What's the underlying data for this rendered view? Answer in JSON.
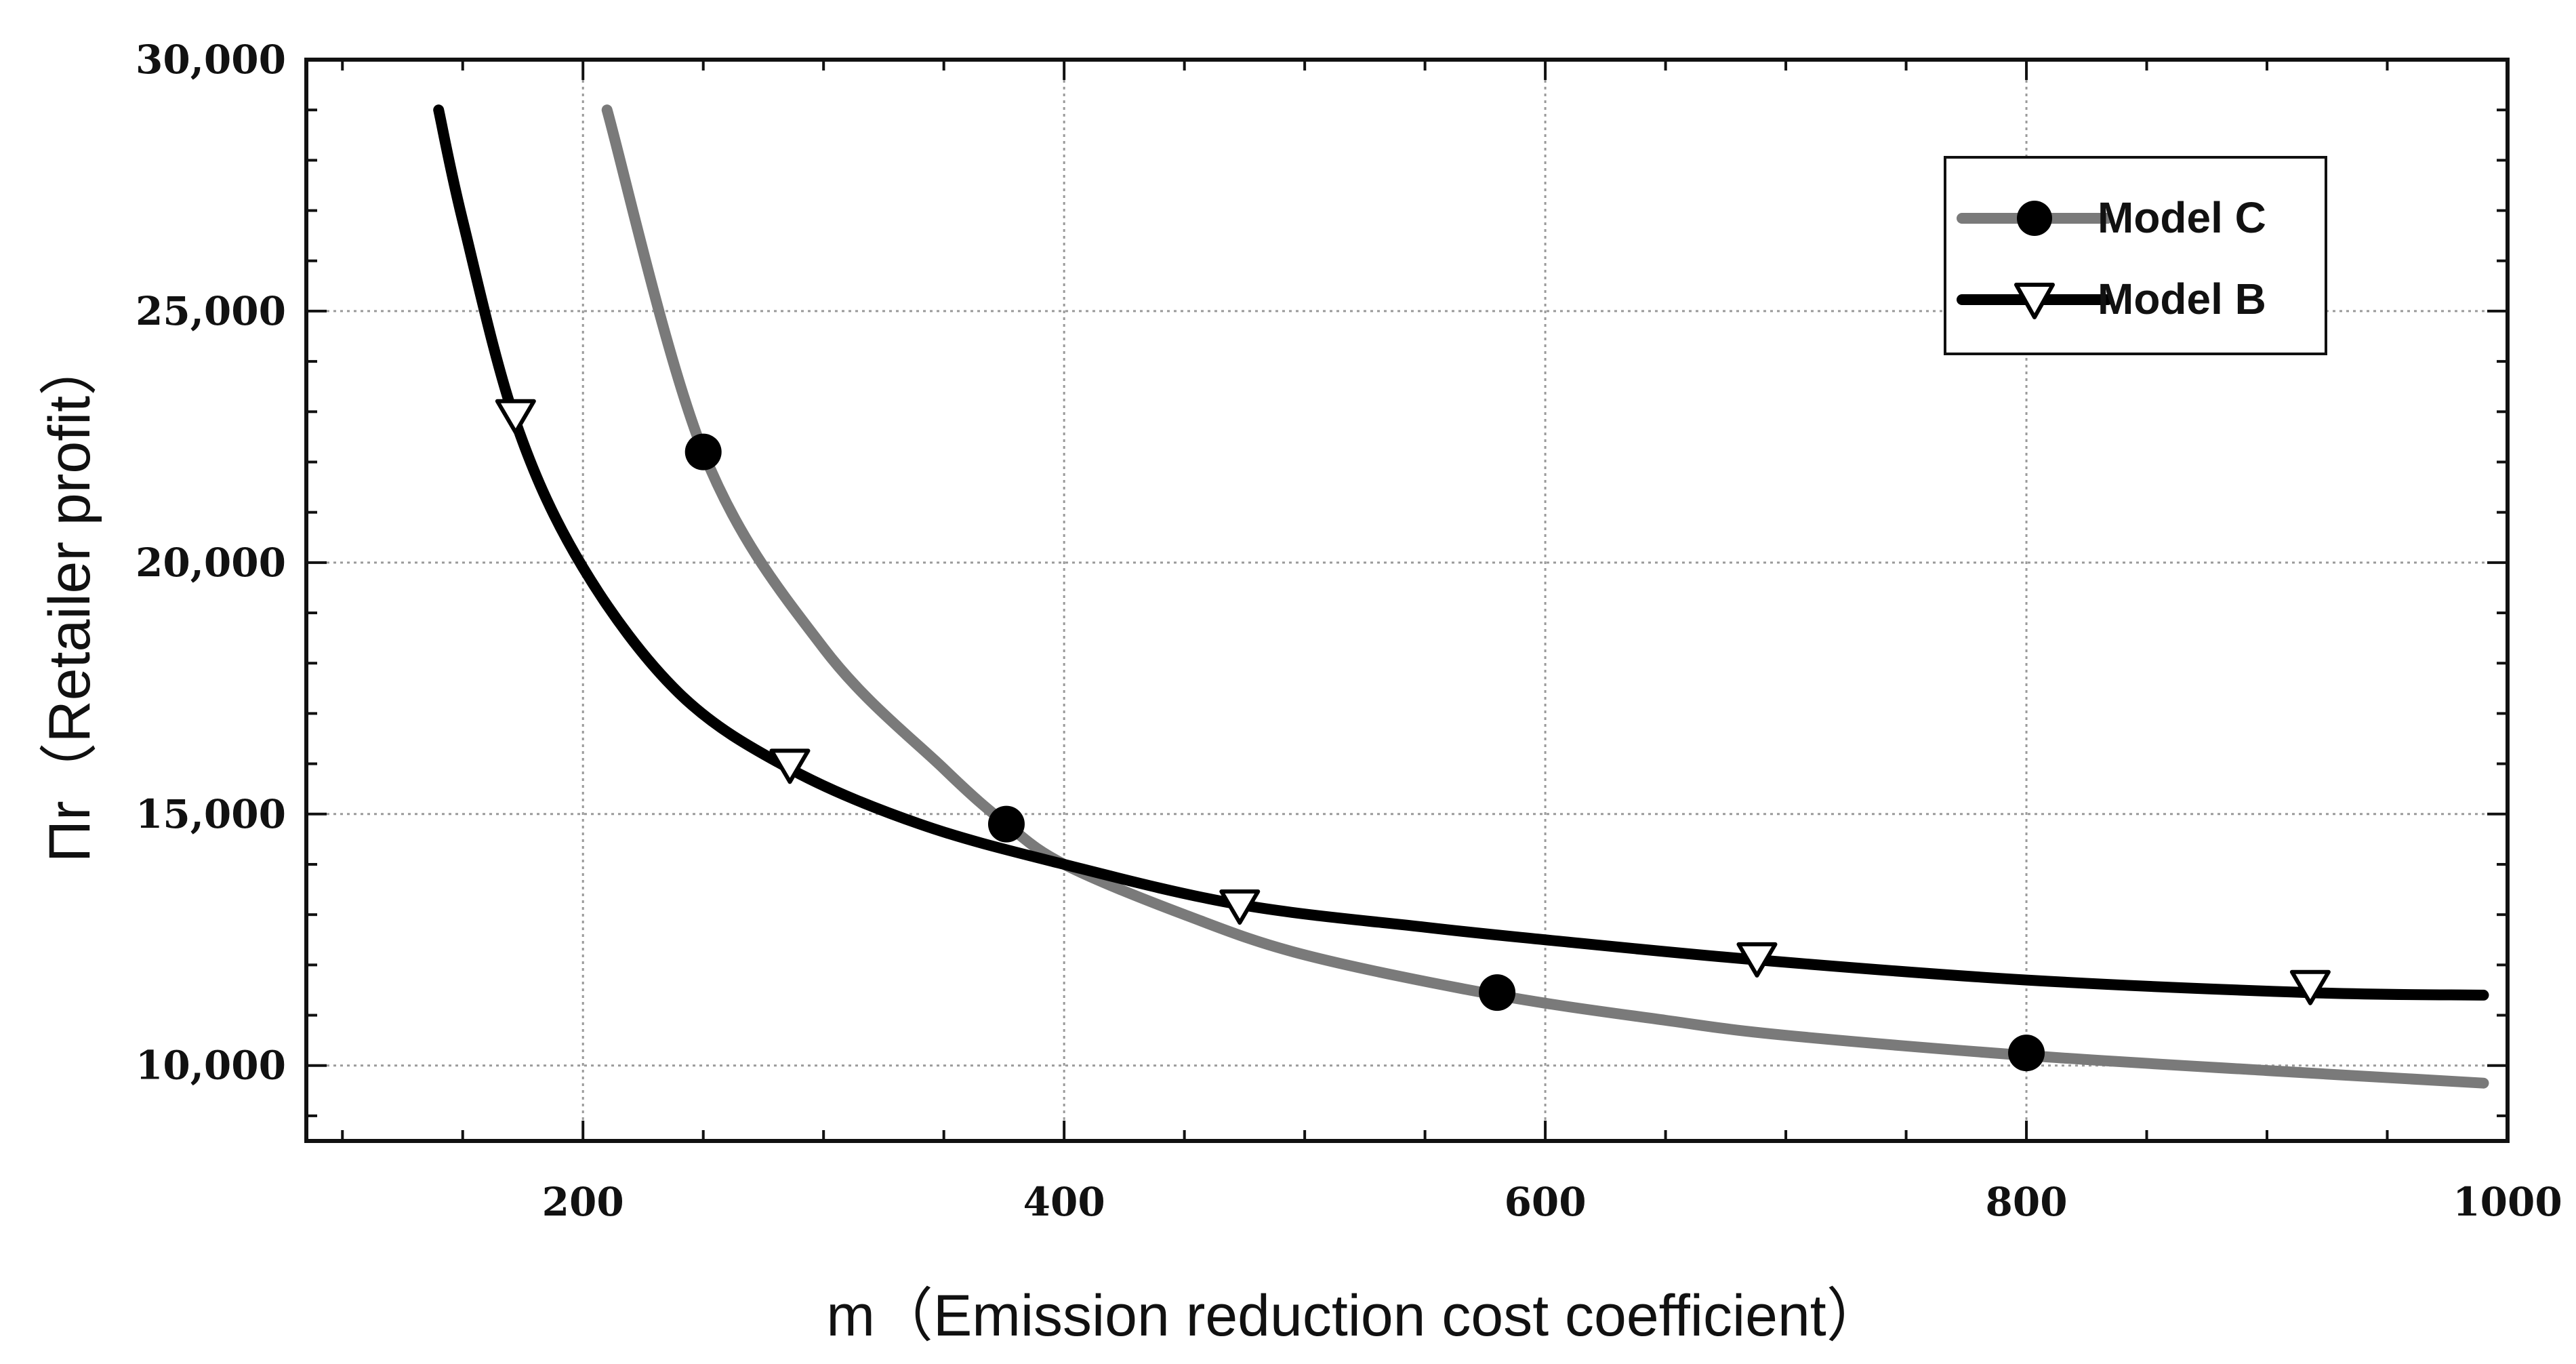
{
  "chart_data": {
    "type": "line",
    "title": "",
    "xlabel": "m（Emission reduction cost coefficient）",
    "ylabel": "Πr（Retailer profit）",
    "xlim": [
      85,
      1000
    ],
    "ylim": [
      8500,
      30000
    ],
    "grid": true,
    "legend_position": "top-right",
    "x_ticks": [
      200,
      400,
      600,
      800,
      1000
    ],
    "x_tick_labels": [
      "200",
      "400",
      "600",
      "800",
      "1000"
    ],
    "y_ticks": [
      10000,
      15000,
      20000,
      25000,
      30000
    ],
    "y_tick_labels": [
      "10,000",
      "15,000",
      "20,000",
      "25,000",
      "30,000"
    ],
    "series": [
      {
        "name": "Model C",
        "color": "#7a7a7a",
        "marker": "filled-circle",
        "x": [
          210,
          250,
          300,
          350,
          376,
          400,
          450,
          500,
          580,
          650,
          700,
          800,
          900,
          990
        ],
        "values": [
          29000,
          22200,
          18300,
          15900,
          14800,
          14000,
          13000,
          12200,
          11400,
          10900,
          10600,
          10200,
          9900,
          9650
        ],
        "marker_x": [
          250,
          376,
          580,
          800
        ],
        "marker_values": [
          22200,
          14800,
          11450,
          10250
        ]
      },
      {
        "name": "Model B",
        "color": "#000000",
        "marker": "open-triangle-down",
        "x": [
          140,
          150,
          172,
          200,
          240,
          286,
          340,
          400,
          473,
          550,
          600,
          688,
          800,
          918,
          990
        ],
        "values": [
          29000,
          26800,
          22800,
          19900,
          17400,
          15900,
          14800,
          14000,
          13200,
          12750,
          12500,
          12100,
          11700,
          11450,
          11400
        ],
        "marker_x": [
          172,
          286,
          473,
          688,
          918
        ],
        "marker_values": [
          22900,
          15950,
          13150,
          12100,
          11550
        ]
      }
    ]
  }
}
